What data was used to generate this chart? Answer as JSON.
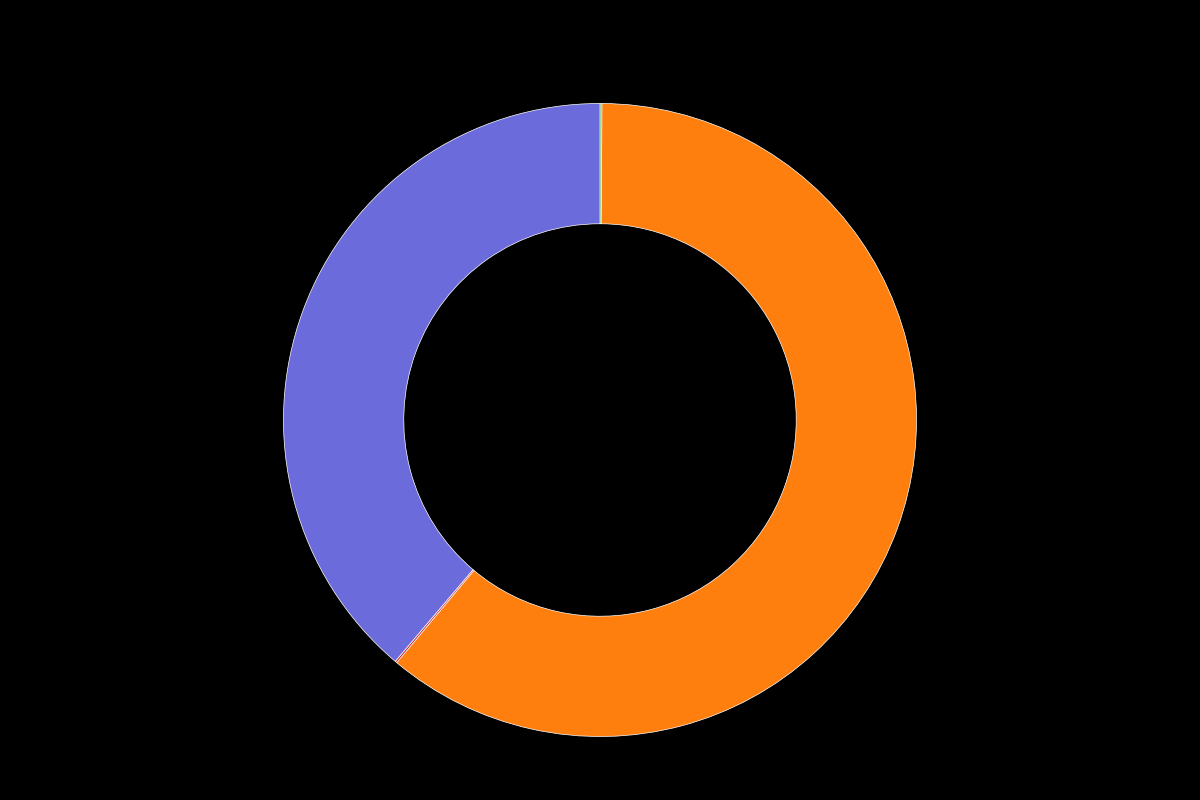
{
  "values": [
    0.1,
    61.0,
    0.1,
    38.8
  ],
  "colors": [
    "#2ca02c",
    "#ff7f0e",
    "#d62728",
    "#6b6bdb"
  ],
  "legend_labels": [
    "",
    "",
    "",
    ""
  ],
  "background_color": "#000000",
  "donut_width": 0.38,
  "startangle": 90,
  "figsize": [
    12.0,
    8.0
  ],
  "dpi": 100
}
